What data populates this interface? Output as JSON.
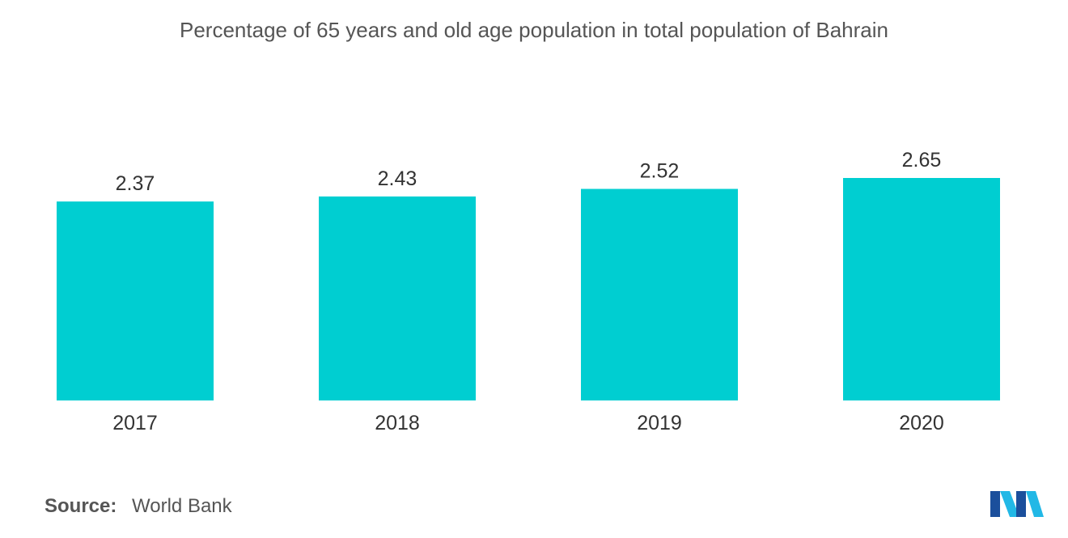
{
  "chart_data": {
    "type": "bar",
    "title": "Percentage of 65 years and old age population in total population of Bahrain",
    "categories": [
      "2017",
      "2018",
      "2019",
      "2020"
    ],
    "values": [
      2.37,
      2.43,
      2.52,
      2.65
    ],
    "value_labels": [
      "2.37",
      "2.43",
      "2.52",
      "2.65"
    ],
    "xlabel": "",
    "ylabel": "",
    "ylim": [
      0,
      2.65
    ],
    "grid": false,
    "legend": "none",
    "bar_color": "#00CED1"
  },
  "footer": {
    "source_label": "Source:",
    "source_value": "World Bank"
  },
  "logo": {
    "icon": "mordor-intelligence-logo-icon",
    "colors": [
      "#1B4F9C",
      "#22B8E6"
    ]
  }
}
